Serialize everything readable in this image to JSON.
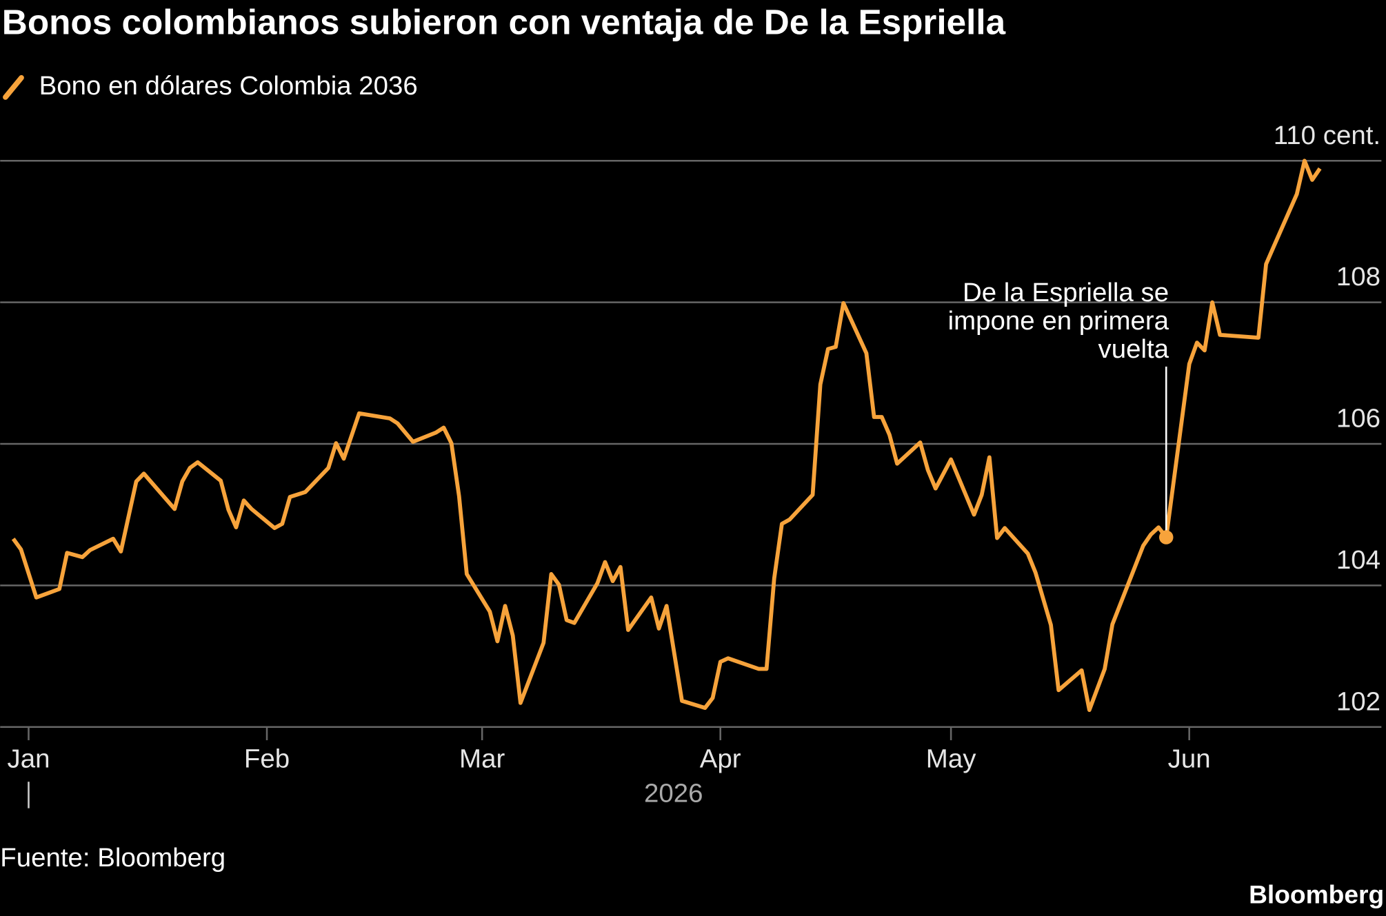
{
  "chart_data": {
    "type": "line",
    "title": "Bonos colombianos subieron con ventaja de De la Espriella",
    "source": "Fuente: Bloomberg",
    "brand": "Bloomberg",
    "year_label": "2026",
    "x": [
      -2,
      -1,
      1,
      4,
      5,
      7,
      8,
      11,
      12,
      14,
      15,
      19,
      20,
      21,
      22,
      25,
      26,
      27,
      28,
      29,
      32,
      33,
      34,
      36,
      39,
      40,
      41,
      43,
      47,
      48,
      50,
      53,
      54,
      55,
      56,
      57,
      60,
      61,
      62,
      63,
      64,
      67,
      68,
      69,
      70,
      71,
      74,
      75,
      76,
      77,
      78,
      81,
      82,
      83,
      85,
      88,
      89,
      90,
      91,
      95,
      96,
      97,
      98,
      99,
      102,
      103,
      104,
      105,
      106,
      109,
      110,
      111,
      112,
      113,
      116,
      117,
      118,
      120,
      123,
      124,
      125,
      126,
      127,
      130,
      131,
      133,
      134,
      137,
      138,
      140,
      141,
      145,
      146,
      147,
      148,
      151,
      152,
      153,
      154,
      155,
      160,
      161,
      162,
      165,
      166,
      167,
      168
    ],
    "series": [
      {
        "name": "Bono en dólares Colombia 2036",
        "color": "#f7a33b",
        "values": [
          104.66,
          104.51,
          103.83,
          103.95,
          104.46,
          104.4,
          104.5,
          104.66,
          104.48,
          105.47,
          105.58,
          105.08,
          105.47,
          105.66,
          105.74,
          105.48,
          105.07,
          104.82,
          105.2,
          105.08,
          104.81,
          104.87,
          105.25,
          105.32,
          105.66,
          106.01,
          105.79,
          106.43,
          106.36,
          106.29,
          106.03,
          106.16,
          106.23,
          106.01,
          105.26,
          104.16,
          103.63,
          103.21,
          103.71,
          103.29,
          102.34,
          103.19,
          104.16,
          104.01,
          103.51,
          103.47,
          104.03,
          104.33,
          104.06,
          104.26,
          103.37,
          103.83,
          103.39,
          103.71,
          102.37,
          102.27,
          102.41,
          102.92,
          102.97,
          102.82,
          102.82,
          104.1,
          104.87,
          104.93,
          105.28,
          106.84,
          107.34,
          107.37,
          107.99,
          107.28,
          106.38,
          106.38,
          106.13,
          105.72,
          106.02,
          105.63,
          105.37,
          105.78,
          105.0,
          105.28,
          105.81,
          104.67,
          104.81,
          104.45,
          104.18,
          103.44,
          102.52,
          102.8,
          102.24,
          102.82,
          103.45,
          104.56,
          104.72,
          104.82,
          104.68,
          107.13,
          107.43,
          107.32,
          108.0,
          107.54,
          107.5,
          108.54,
          108.79,
          109.53,
          110.0,
          109.73,
          109.89
        ]
      }
    ],
    "xlim": [
      -3.7,
      176
    ],
    "xticks": [
      {
        "value": 0,
        "label": "Jan"
      },
      {
        "value": 31,
        "label": "Feb"
      },
      {
        "value": 59,
        "label": "Mar"
      },
      {
        "value": 90,
        "label": "Apr"
      },
      {
        "value": 120,
        "label": "May"
      },
      {
        "value": 151,
        "label": "Jun"
      }
    ],
    "ylim": [
      102,
      110
    ],
    "yticks": [
      102,
      104,
      106,
      108,
      {
        "value": 110,
        "label": "110 cent."
      }
    ],
    "grid": true,
    "annotation": {
      "text": [
        "De la Espriella se",
        "impone en primera",
        "vuelta"
      ],
      "x": 148,
      "y": 104.68
    }
  }
}
